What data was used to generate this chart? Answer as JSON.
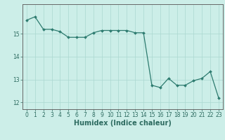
{
  "x": [
    0,
    1,
    2,
    3,
    4,
    5,
    6,
    7,
    8,
    9,
    10,
    11,
    12,
    13,
    14,
    15,
    16,
    17,
    18,
    19,
    20,
    21,
    22,
    23
  ],
  "y": [
    15.6,
    15.75,
    15.2,
    15.2,
    15.1,
    14.85,
    14.85,
    14.85,
    15.05,
    15.15,
    15.15,
    15.15,
    15.15,
    15.05,
    15.05,
    12.75,
    12.65,
    13.05,
    12.75,
    12.75,
    12.95,
    13.05,
    13.35,
    12.2
  ],
  "line_color": "#2d7b6f",
  "marker_color": "#2d7b6f",
  "bg_color": "#cceee8",
  "grid_color": "#aad8d0",
  "axis_color": "#666666",
  "xlabel": "Humidex (Indice chaleur)",
  "xlim": [
    -0.5,
    23.5
  ],
  "ylim": [
    11.7,
    16.3
  ],
  "yticks": [
    12,
    13,
    14,
    15
  ],
  "xticks": [
    0,
    1,
    2,
    3,
    4,
    5,
    6,
    7,
    8,
    9,
    10,
    11,
    12,
    13,
    14,
    15,
    16,
    17,
    18,
    19,
    20,
    21,
    22,
    23
  ],
  "tick_fontsize": 5.5,
  "xlabel_fontsize": 7
}
